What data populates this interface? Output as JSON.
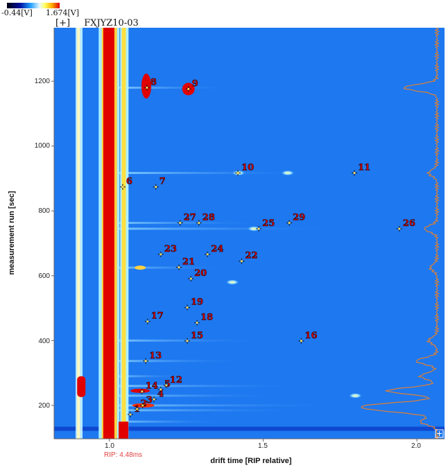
{
  "colorbar": {
    "min_label": "-0.44[V]",
    "max_label": "1.674[V]",
    "colors": [
      "#000010",
      "#0010a0",
      "#20a0ff",
      "#e8f8ff",
      "#ffff60",
      "#ffb000",
      "#e00000"
    ]
  },
  "header": {
    "expand_label": "[+]",
    "sample_name": "FXJYZ10-03"
  },
  "chart_data": {
    "type": "heatmap",
    "title": "FXJYZ10-03",
    "xlabel": "drift time [RIP relative]",
    "ylabel": "measurement run [sec]",
    "xlim": [
      0.82,
      2.09
    ],
    "ylim": [
      97,
      1365
    ],
    "x_ticks": [
      "1.0",
      "1.5",
      "2.0"
    ],
    "y_ticks": [
      "200",
      "400",
      "600",
      "800",
      "1000",
      "1200"
    ],
    "rip_annotation": "RIP: 4.48ms",
    "rip_position": 1.0,
    "background_color": "#1e78f0",
    "marker_color": "#d00000",
    "spectrum_color": "#e08030",
    "markers": [
      {
        "label": "1",
        "x": 1.068,
        "y": 172
      },
      {
        "label": "2",
        "x": 1.09,
        "y": 189
      },
      {
        "label": "3",
        "x": 1.108,
        "y": 200
      },
      {
        "label": "4",
        "x": 1.145,
        "y": 219
      },
      {
        "label": "5",
        "x": 1.167,
        "y": 249
      },
      {
        "label": "6",
        "x": 1.043,
        "y": 874
      },
      {
        "label": "7",
        "x": 1.151,
        "y": 874
      },
      {
        "label": "8",
        "x": 1.122,
        "y": 1180
      },
      {
        "label": "9",
        "x": 1.257,
        "y": 1176
      },
      {
        "label": "10",
        "x": 1.418,
        "y": 917
      },
      {
        "label": "11",
        "x": 1.797,
        "y": 917
      },
      {
        "label": "12",
        "x": 1.185,
        "y": 262
      },
      {
        "label": "13",
        "x": 1.118,
        "y": 337
      },
      {
        "label": "14",
        "x": 1.106,
        "y": 243
      },
      {
        "label": "15",
        "x": 1.253,
        "y": 399
      },
      {
        "label": "16",
        "x": 1.624,
        "y": 399
      },
      {
        "label": "17",
        "x": 1.124,
        "y": 459
      },
      {
        "label": "18",
        "x": 1.285,
        "y": 455
      },
      {
        "label": "19",
        "x": 1.253,
        "y": 502
      },
      {
        "label": "20",
        "x": 1.265,
        "y": 591
      },
      {
        "label": "21",
        "x": 1.226,
        "y": 626
      },
      {
        "label": "22",
        "x": 1.43,
        "y": 645
      },
      {
        "label": "23",
        "x": 1.167,
        "y": 666
      },
      {
        "label": "24",
        "x": 1.319,
        "y": 666
      },
      {
        "label": "25",
        "x": 1.486,
        "y": 745
      },
      {
        "label": "26",
        "x": 1.943,
        "y": 745
      },
      {
        "label": "27",
        "x": 1.23,
        "y": 763
      },
      {
        "label": "28",
        "x": 1.291,
        "y": 763
      },
      {
        "label": "29",
        "x": 1.585,
        "y": 763
      }
    ]
  }
}
